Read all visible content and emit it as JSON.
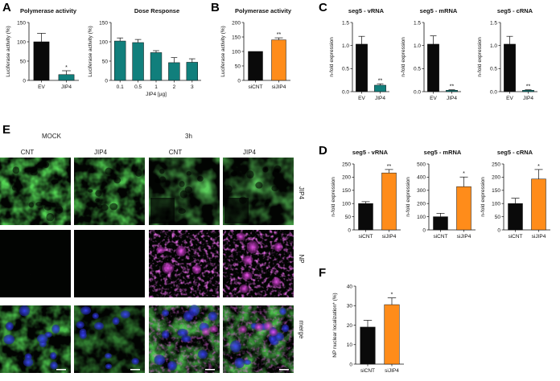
{
  "panel_letters": {
    "A": "A",
    "B": "B",
    "C": "C",
    "D": "D",
    "E": "E",
    "F": "F"
  },
  "colors": {
    "black_bar": "#0a0a0a",
    "teal_bar": "#117f7c",
    "orange_bar": "#ff8c1a",
    "magenta": "#cc33cc",
    "green": "#33bb33",
    "blue": "#2233cc"
  },
  "microscopy": {
    "group_labels": [
      "MOCK",
      "3h"
    ],
    "column_labels": [
      "CNT",
      "JIP4",
      "CNT",
      "JIP4"
    ],
    "row_labels": [
      "JIP4",
      "NP",
      "merge"
    ]
  },
  "chart_data": [
    {
      "id": "A1",
      "type": "bar",
      "title": "Polymerase activity",
      "ylabel": "Luciferase activity (%)",
      "xlabel": "",
      "categories": [
        "EV",
        "JIP4"
      ],
      "values": [
        100,
        15
      ],
      "errors": [
        22,
        10
      ],
      "ylim": [
        0,
        150
      ],
      "yticks": [
        0,
        50,
        100,
        150
      ],
      "significance": [
        "",
        "*"
      ],
      "bar_colors": [
        "#0a0a0a",
        "#117f7c"
      ]
    },
    {
      "id": "A2",
      "type": "bar",
      "title": "Dose Response",
      "ylabel": "Luciferase activity (%)",
      "xlabel": "JIP4 [µg]",
      "categories": [
        "0.1",
        "0.5",
        "1",
        "2",
        "3"
      ],
      "values": [
        102,
        98,
        72,
        46,
        47
      ],
      "errors": [
        8,
        8,
        5,
        13,
        9
      ],
      "ylim": [
        0,
        150
      ],
      "yticks": [
        0,
        50,
        100,
        150
      ],
      "significance": [
        "",
        "",
        "",
        "",
        ""
      ],
      "bar_colors": [
        "#117f7c",
        "#117f7c",
        "#117f7c",
        "#117f7c",
        "#117f7c"
      ]
    },
    {
      "id": "B",
      "type": "bar",
      "title": "Polymerase activity",
      "ylabel": "Luciferase activity (%)",
      "xlabel": "",
      "categories": [
        "siCNT",
        "siJIP4"
      ],
      "values": [
        100,
        140
      ],
      "errors": [
        0,
        7
      ],
      "ylim": [
        0,
        200
      ],
      "yticks": [
        0,
        50,
        100,
        150,
        200
      ],
      "significance": [
        "",
        "**"
      ],
      "bar_colors": [
        "#0a0a0a",
        "#ff8c1a"
      ]
    },
    {
      "id": "C1",
      "type": "bar",
      "title": "seg5 - vRNA",
      "ylabel": "n-fold expression",
      "xlabel": "",
      "categories": [
        "EV",
        "JIP4"
      ],
      "values": [
        1.03,
        0.14
      ],
      "errors": [
        0.17,
        0.03
      ],
      "ylim": [
        0,
        1.5
      ],
      "yticks": [
        0.0,
        0.5,
        1.0,
        1.5
      ],
      "yticklabels": [
        "0.0",
        "0.5",
        "1.0",
        "1.5"
      ],
      "significance": [
        "",
        "**"
      ],
      "bar_colors": [
        "#0a0a0a",
        "#117f7c"
      ]
    },
    {
      "id": "C2",
      "type": "bar",
      "title": "seg5 - mRNA",
      "ylabel": "n-fold expression",
      "xlabel": "",
      "categories": [
        "EV",
        "JIP4"
      ],
      "values": [
        1.03,
        0.03
      ],
      "errors": [
        0.18,
        0.01
      ],
      "ylim": [
        0,
        1.5
      ],
      "yticks": [
        0.0,
        0.5,
        1.0,
        1.5
      ],
      "yticklabels": [
        "0.0",
        "0.5",
        "1.0",
        "1.5"
      ],
      "significance": [
        "",
        "**"
      ],
      "bar_colors": [
        "#0a0a0a",
        "#117f7c"
      ]
    },
    {
      "id": "C3",
      "type": "bar",
      "title": "seg5 - cRNA",
      "ylabel": "n-fold expression",
      "xlabel": "",
      "categories": [
        "EV",
        "JIP4"
      ],
      "values": [
        1.03,
        0.03
      ],
      "errors": [
        0.17,
        0.01
      ],
      "ylim": [
        0,
        1.5
      ],
      "yticks": [
        0.0,
        0.5,
        1.0,
        1.5
      ],
      "yticklabels": [
        "0.0",
        "0.5",
        "1.0",
        "1.5"
      ],
      "significance": [
        "",
        "**"
      ],
      "bar_colors": [
        "#0a0a0a",
        "#117f7c"
      ]
    },
    {
      "id": "D1",
      "type": "bar",
      "title": "seg5 - vRNA",
      "ylabel": "n-fold expression",
      "xlabel": "",
      "categories": [
        "siCNT",
        "siJIP4"
      ],
      "values": [
        100,
        216
      ],
      "errors": [
        7,
        13
      ],
      "ylim": [
        0,
        250
      ],
      "yticks": [
        0,
        50,
        100,
        150,
        200,
        250
      ],
      "significance": [
        "",
        "**"
      ],
      "bar_colors": [
        "#0a0a0a",
        "#ff8c1a"
      ]
    },
    {
      "id": "D2",
      "type": "bar",
      "title": "seg5 - mRNA",
      "ylabel": "n-fold expression",
      "xlabel": "",
      "categories": [
        "siCNT",
        "siJIP4"
      ],
      "values": [
        100,
        328
      ],
      "errors": [
        26,
        73
      ],
      "ylim": [
        0,
        500
      ],
      "yticks": [
        0,
        100,
        200,
        300,
        400,
        500
      ],
      "significance": [
        "",
        "*"
      ],
      "bar_colors": [
        "#0a0a0a",
        "#ff8c1a"
      ]
    },
    {
      "id": "D3",
      "type": "bar",
      "title": "seg5 - cRNA",
      "ylabel": "n-fold expression",
      "xlabel": "",
      "categories": [
        "siCNT",
        "siJIP4"
      ],
      "values": [
        100,
        193
      ],
      "errors": [
        20,
        36
      ],
      "ylim": [
        0,
        250
      ],
      "yticks": [
        0,
        50,
        100,
        150,
        200,
        250
      ],
      "significance": [
        "",
        "*"
      ],
      "bar_colors": [
        "#0a0a0a",
        "#ff8c1a"
      ]
    },
    {
      "id": "F",
      "type": "bar",
      "title": "",
      "ylabel": "NP nuclear localization* (%)",
      "xlabel": "",
      "categories": [
        "siCNT",
        "siJIP4"
      ],
      "values": [
        19,
        30.5
      ],
      "errors": [
        3.5,
        3.5
      ],
      "ylim": [
        0,
        40
      ],
      "yticks": [
        0,
        10,
        20,
        30,
        40
      ],
      "significance": [
        "",
        "*"
      ],
      "bar_colors": [
        "#0a0a0a",
        "#ff8c1a"
      ]
    }
  ]
}
